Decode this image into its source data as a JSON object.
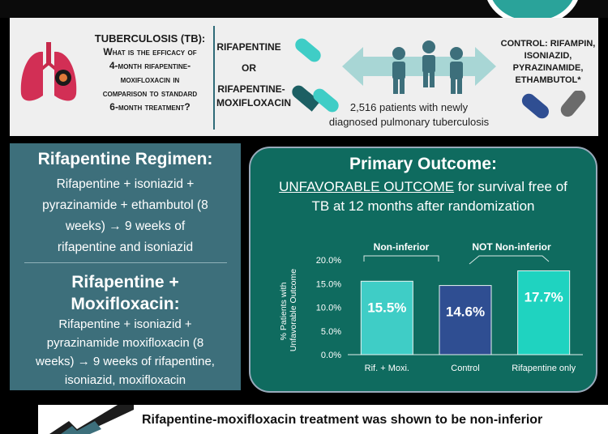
{
  "header": {
    "question": {
      "line1": "TUBERCULOSIS (TB):",
      "line2": "What is the efficacy of",
      "line3": "4-month rifapentine-",
      "line4": "moxifloxacin in",
      "line5": "comparison to standard",
      "line6": "6-month treatment?"
    },
    "arm1": "RIFAPENTINE",
    "or": "OR",
    "arm2_line1": "RIFAPENTINE-",
    "arm2_line2": "MOXIFLOXACIN",
    "patients_line1": "2,516 patients with newly",
    "patients_line2": "diagnosed pulmonary tuberculosis",
    "control_line1": "CONTROL: RIFAMPIN,",
    "control_line2": "ISONIAZID,",
    "control_line3": "PYRAZINAMIDE,",
    "control_line4": "ETHAMBUTOL*"
  },
  "left_panel": {
    "title1": "Rifapentine Regimen:",
    "body1": [
      "Rifapentine + isoniazid +",
      "pyrazinamide + ethambutol (8",
      "weeks) → 9 weeks of",
      "rifapentine and isoniazid"
    ],
    "title2_line1": "Rifapentine +",
    "title2_line2": "Moxifloxacin:",
    "body2": [
      "Rifapentine + isoniazid +",
      "pyrazinamide moxifloxacin (8",
      "weeks) → 9 weeks of rifapentine,",
      "isoniazid, moxifloxacin"
    ]
  },
  "right_panel": {
    "title": "Primary Outcome:",
    "subtitle_underlined": "UNFAVORABLE OUTCOME",
    "subtitle_rest": " for survival free of",
    "subtitle_line2": "TB at 12 months after randomization",
    "bracket_label_left": "Non-inferior",
    "bracket_label_right": "NOT Non-inferior"
  },
  "chart_data": {
    "type": "bar",
    "categories": [
      "Rif. + Moxi.",
      "Control",
      "Rifapentine only"
    ],
    "values": [
      15.5,
      14.6,
      17.7
    ],
    "value_labels": [
      "15.5%",
      "14.6%",
      "17.7%"
    ],
    "ylabel_line1": "% Patients with",
    "ylabel_line2": "Unfavorable Outcome",
    "yticks": [
      "0.0%",
      "5.0%",
      "10.0%",
      "15.0%",
      "20.0%"
    ],
    "ylim": [
      0,
      20
    ],
    "colors": [
      "#3fcdc6",
      "#2f4e92",
      "#1fd3c0"
    ]
  },
  "footer": {
    "text": "Rifapentine-moxifloxacin treatment was shown to be non-inferior"
  },
  "colors": {
    "panel_teal": "#3d6f7b",
    "outcome_green": "#0f6b5f",
    "accent_cyan": "#3fcdc6",
    "navy": "#2f4e92"
  }
}
